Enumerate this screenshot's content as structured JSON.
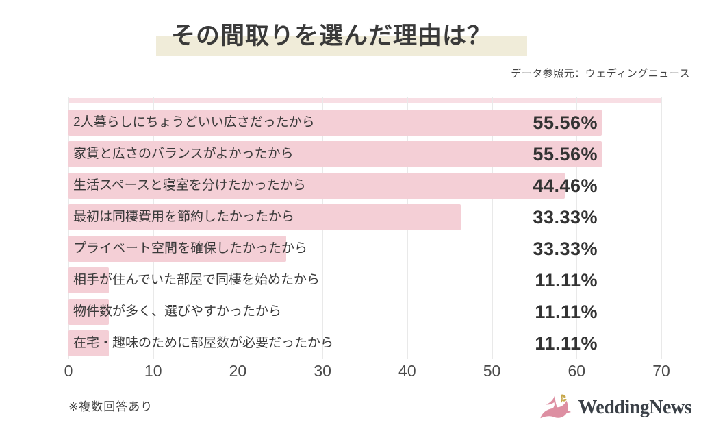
{
  "title": "その間取りを選んだ理由は？",
  "source": "データ参照元：ウェディングニュース",
  "note": "※複数回答あり",
  "logo": {
    "text": "WeddingNews",
    "icon": "dove-with-sprig-icon"
  },
  "colors": {
    "bar_pink": "#f4cfd6",
    "strip_pink": "#f8dee4",
    "highlight_cream": "#f0ecd9",
    "text_dark": "#3a3a3a",
    "pct_dark": "#333333",
    "grid_gray": "#e9e9e9",
    "axis_gray": "#4a4a4a",
    "bird_pink": "#dd8fa2",
    "sprig_gold": "#c7a84c",
    "logo_navy": "#3a4047"
  },
  "chart_data": {
    "type": "bar",
    "orientation": "horizontal",
    "title": "その間取りを選んだ理由は？",
    "categories": [
      "2人暮らしにちょうどいい広さだったから",
      "家賃と広さのバランスがよかったから",
      "生活スペースと寝室を分けたかったから",
      "最初は同棲費用を節約したかったから",
      "プライベート空間を確保したかったから",
      "相手が住んでいた部屋で同棲を始めたから",
      "物件数が多く、選びやすかったから",
      "在宅・趣味のために部屋数が必要だったから"
    ],
    "values": [
      55.56,
      55.56,
      44.46,
      33.33,
      33.33,
      11.11,
      11.11,
      11.11
    ],
    "value_labels": [
      "55.56%",
      "55.56%",
      "44.46%",
      "33.33%",
      "33.33%",
      "11.11%",
      "11.11%",
      "11.11%"
    ],
    "xlim": [
      0,
      70
    ],
    "x_ticks": [
      "0",
      "10",
      "20",
      "30",
      "40",
      "50",
      "60",
      "70"
    ],
    "grid": true,
    "value_label_position": "right-aligned-column",
    "bar_drawn_width_pct": [
      90.0,
      90.0,
      83.7,
      66.2,
      36.7,
      6.8,
      6.8,
      6.8
    ]
  }
}
